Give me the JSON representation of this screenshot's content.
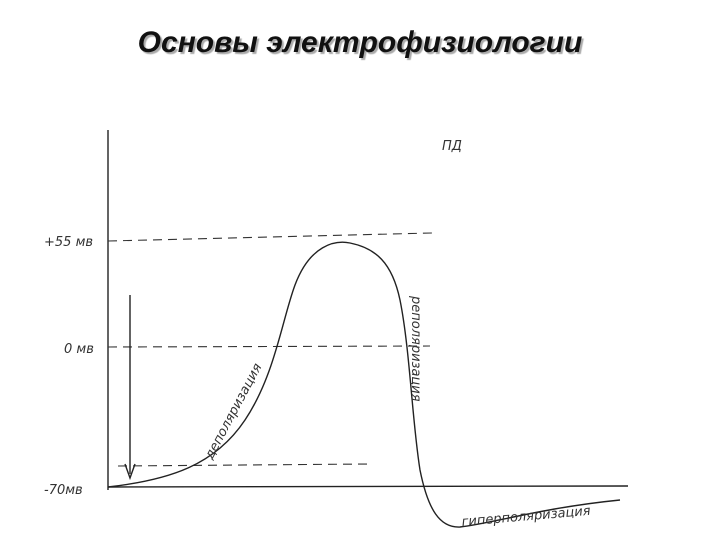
{
  "header": {
    "title": "Основы электрофизиологии"
  },
  "diagram": {
    "axis_label": "ПД",
    "levels": [
      "+55 мв",
      "0 мв",
      "-70мв"
    ],
    "phases": {
      "rise": "деполяризация",
      "fall": "реполяризация",
      "after": "гиперполяризация"
    }
  }
}
